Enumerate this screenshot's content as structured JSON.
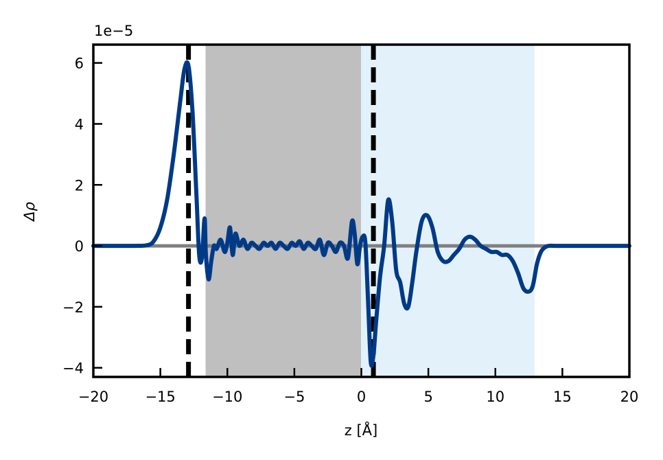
{
  "chart_data": {
    "type": "line",
    "xlabel": "z [Å]",
    "ylabel": "Δρ",
    "y_offset_text": "1e−5",
    "xlim": [
      -20,
      20
    ],
    "ylim": [
      -4.3,
      6.6
    ],
    "y_scale_factor": 1e-05,
    "x_ticks": [
      -20,
      -15,
      -10,
      -5,
      0,
      5,
      10,
      15,
      20
    ],
    "x_tick_labels": [
      "−20",
      "−15",
      "−10",
      "−5",
      "0",
      "5",
      "10",
      "15",
      "20"
    ],
    "y_ticks": [
      -4,
      -2,
      0,
      2,
      4,
      6
    ],
    "y_tick_labels": [
      "−4",
      "−2",
      "0",
      "2",
      "4",
      "6"
    ],
    "grid": false,
    "shaded_regions": [
      {
        "x_start": -11.6,
        "x_end": 0.0,
        "color": "#bfbfbf"
      },
      {
        "x_start": 0.0,
        "x_end": 12.9,
        "color": "#e3f2fa"
      }
    ],
    "vertical_lines": [
      {
        "x": -12.9,
        "style": "dashed",
        "color": "#000000"
      },
      {
        "x": 0.9,
        "style": "dashed",
        "color": "#000000"
      }
    ],
    "zero_line": {
      "y": 0,
      "color": "#808080"
    },
    "series": [
      {
        "color": "#003a87",
        "x": [
          -20,
          -17,
          -16,
          -15.5,
          -15,
          -14.5,
          -14,
          -13.5,
          -13.2,
          -12.9,
          -12.6,
          -12.3,
          -12.1,
          -11.9,
          -11.7,
          -11.6,
          -11.4,
          -11.2,
          -11.0,
          -10.8,
          -10.5,
          -10.2,
          -10.0,
          -9.8,
          -9.6,
          -9.4,
          -9.1,
          -8.8,
          -8.5,
          -8.2,
          -7.9,
          -7.6,
          -7.3,
          -7.0,
          -6.7,
          -6.4,
          -6.1,
          -5.8,
          -5.5,
          -5.2,
          -4.9,
          -4.6,
          -4.3,
          -4.0,
          -3.7,
          -3.4,
          -3.1,
          -2.8,
          -2.5,
          -2.2,
          -1.9,
          -1.6,
          -1.3,
          -1.0,
          -0.7,
          -0.5,
          -0.3,
          -0.1,
          0.1,
          0.3,
          0.5,
          0.7,
          0.9,
          1.1,
          1.4,
          1.7,
          2.0,
          2.3,
          2.6,
          2.9,
          3.2,
          3.5,
          3.8,
          4.1,
          4.5,
          4.9,
          5.3,
          5.7,
          6.1,
          6.5,
          6.9,
          7.3,
          7.7,
          8.1,
          8.5,
          8.9,
          9.3,
          9.7,
          10.1,
          10.5,
          10.9,
          11.3,
          11.7,
          12.1,
          12.5,
          12.8,
          13.1,
          13.4,
          13.7,
          14.0,
          14.4,
          14.8,
          15.5,
          16.5,
          18,
          20
        ],
        "y": [
          0,
          0,
          0.02,
          0.15,
          0.6,
          1.5,
          3.0,
          4.8,
          5.8,
          5.9,
          4.4,
          1.6,
          -0.3,
          -0.4,
          0.9,
          -0.3,
          -1.1,
          -0.5,
          0.0,
          -0.1,
          0.2,
          -0.2,
          0.1,
          0.6,
          -0.3,
          0.4,
          0.0,
          0.2,
          -0.1,
          0.1,
          0.0,
          -0.1,
          0.1,
          0.0,
          0.1,
          -0.1,
          0.1,
          0.0,
          -0.1,
          0.1,
          0.0,
          0.15,
          -0.1,
          0.1,
          0.0,
          -0.1,
          0.2,
          -0.3,
          0.1,
          0.0,
          -0.2,
          0.1,
          0.0,
          -0.4,
          0.8,
          0.4,
          -0.6,
          0.0,
          0.3,
          0.1,
          -1.8,
          -3.8,
          -3.6,
          -2.5,
          -1.0,
          0.0,
          1.5,
          0.8,
          -0.8,
          -1.2,
          -1.9,
          -2.0,
          -1.2,
          -0.2,
          0.8,
          1.0,
          0.6,
          -0.2,
          -0.5,
          -0.5,
          -0.3,
          -0.1,
          0.2,
          0.3,
          0.2,
          0.0,
          -0.1,
          -0.2,
          -0.2,
          -0.3,
          -0.3,
          -0.5,
          -0.9,
          -1.4,
          -1.5,
          -1.3,
          -0.6,
          -0.2,
          -0.05,
          0.0,
          0.0,
          0.0,
          0.0,
          0.0,
          0.0,
          0.0
        ]
      }
    ]
  }
}
